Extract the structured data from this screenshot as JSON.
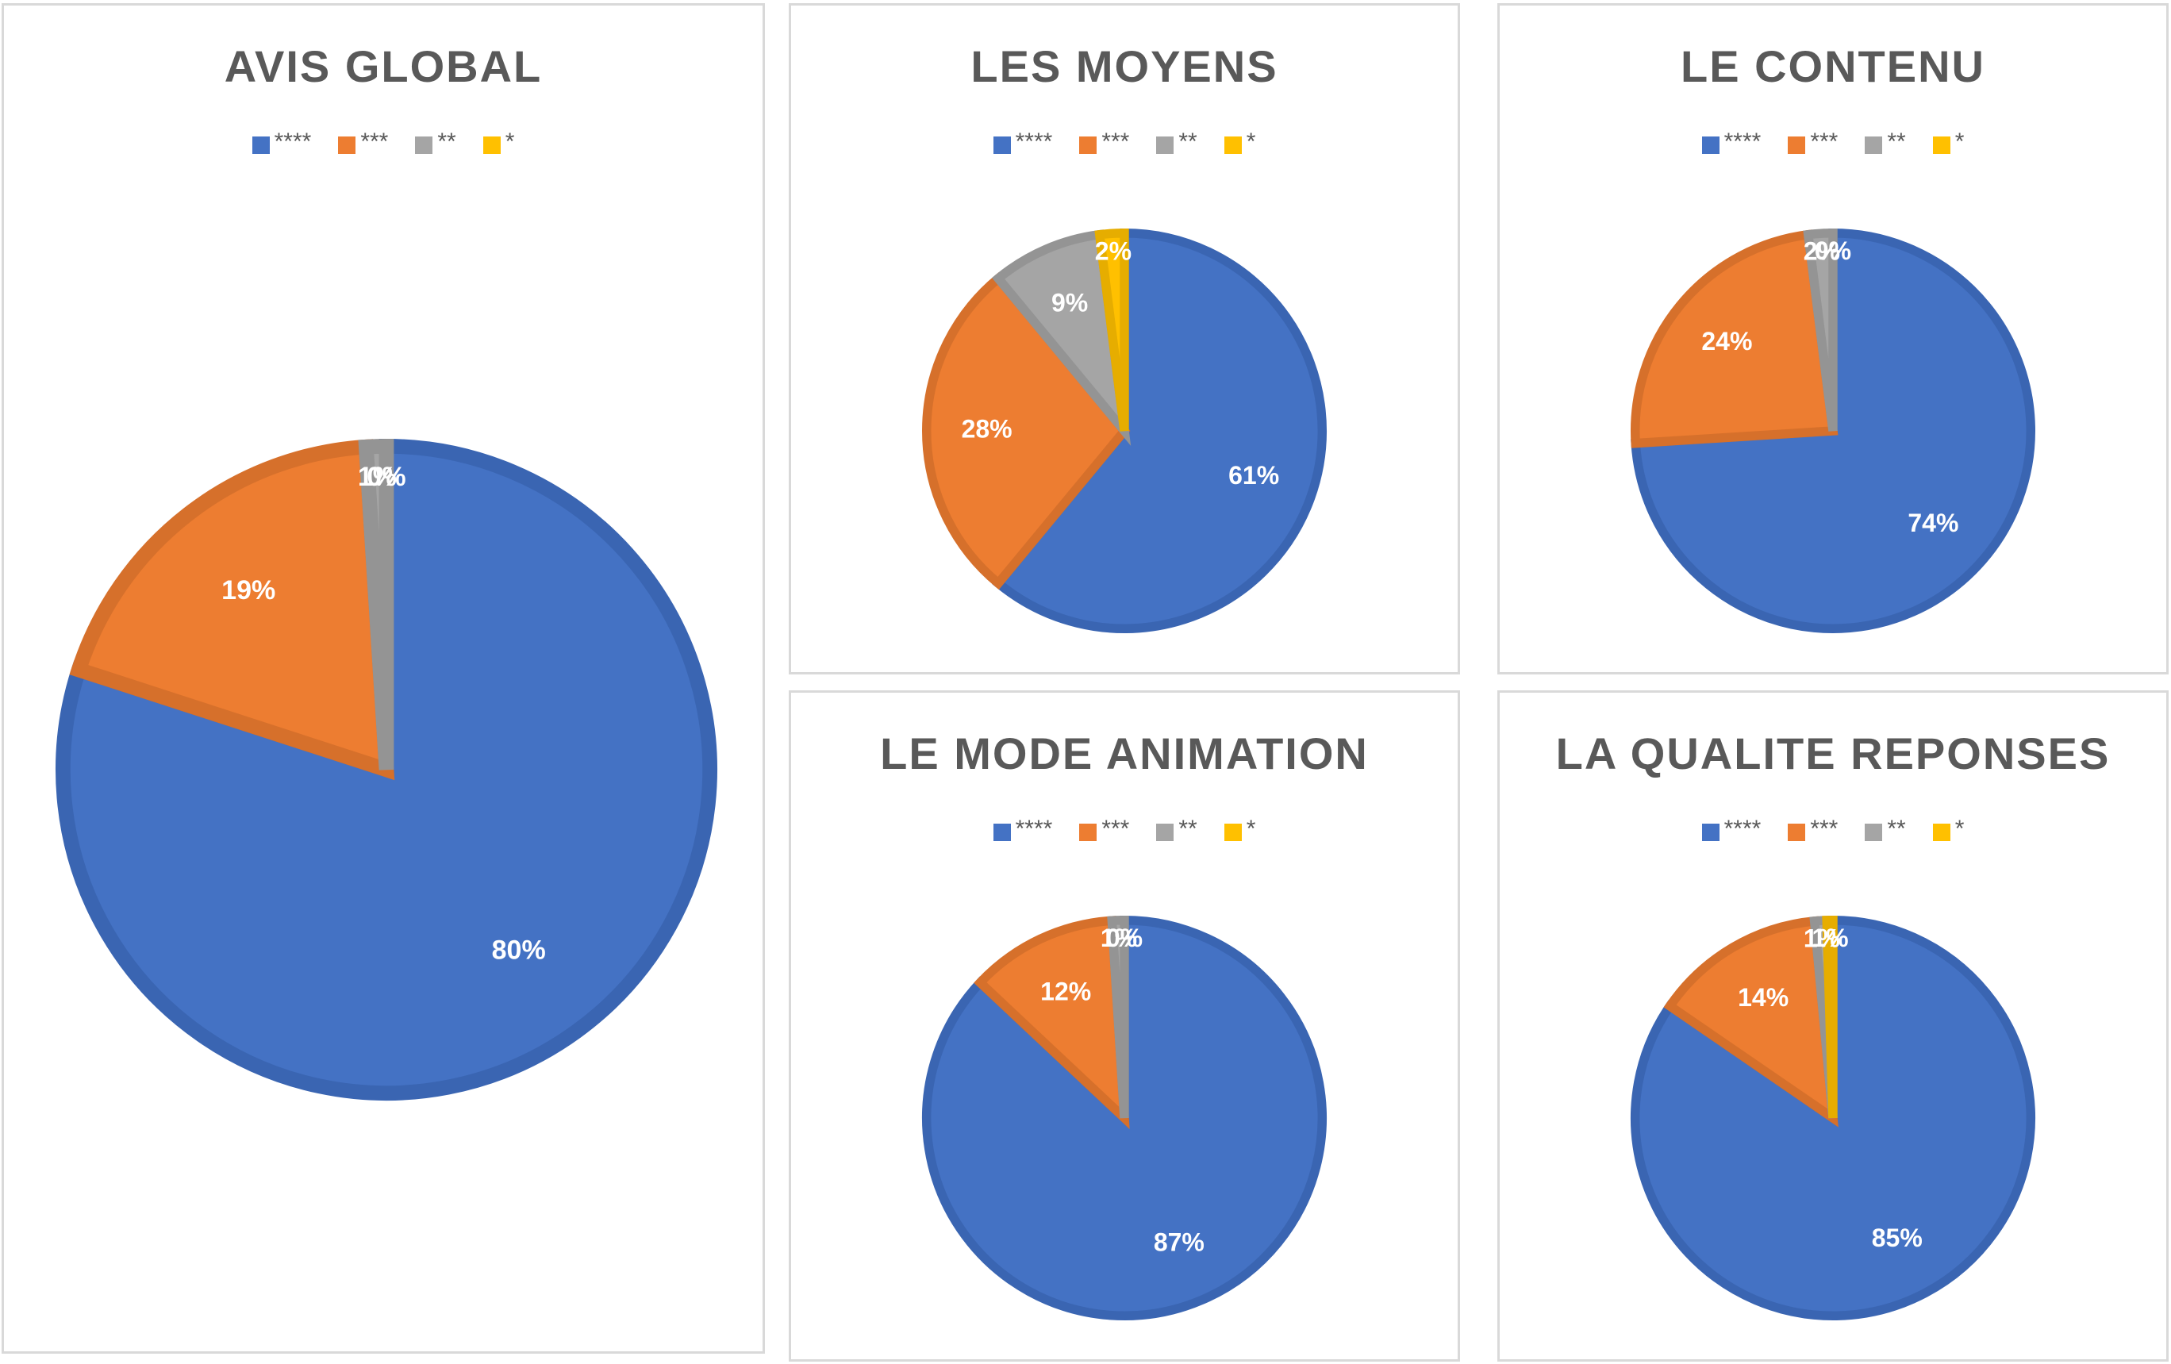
{
  "colors": [
    "#4472c4",
    "#ed7d31",
    "#a5a5a5",
    "#ffc000"
  ],
  "legend": [
    "****",
    "***",
    "**",
    "*"
  ],
  "chart_data": [
    {
      "type": "pie",
      "title": "AVIS GLOBAL",
      "categories": [
        "****",
        "***",
        "**",
        "*"
      ],
      "values": [
        80,
        19,
        1,
        0
      ],
      "labels": [
        "80%",
        "19%",
        "1%",
        "0%"
      ]
    },
    {
      "type": "pie",
      "title": "LES MOYENS",
      "categories": [
        "****",
        "***",
        "**",
        "*"
      ],
      "values": [
        61,
        28,
        9,
        2
      ],
      "labels": [
        "61%",
        "28%",
        "9%",
        "2%"
      ]
    },
    {
      "type": "pie",
      "title": "LE CONTENU",
      "categories": [
        "****",
        "***",
        "**",
        "*"
      ],
      "values": [
        74,
        24,
        2,
        0
      ],
      "labels": [
        "74%",
        "24%",
        "2%",
        "0%"
      ]
    },
    {
      "type": "pie",
      "title": "LE MODE ANIMATION",
      "categories": [
        "****",
        "***",
        "**",
        "*"
      ],
      "values": [
        87,
        12,
        1,
        0
      ],
      "labels": [
        "87%",
        "12%",
        "1%",
        "0%"
      ]
    },
    {
      "type": "pie",
      "title": "LA QUALITE REPONSES",
      "categories": [
        "****",
        "***",
        "**",
        "*"
      ],
      "values": [
        85,
        14,
        1,
        0.5
      ],
      "labels": [
        "85%",
        "14%",
        "1%",
        "1%"
      ]
    }
  ]
}
